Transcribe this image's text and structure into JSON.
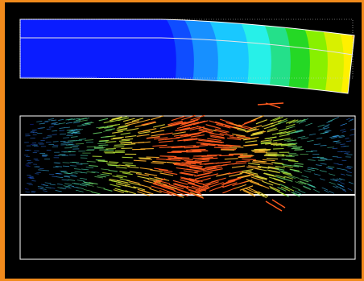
{
  "colors": {
    "frame_border": "#f08a1c",
    "background": "#000000",
    "outline": "#ffffff",
    "contour_scale": [
      "#0a1cff",
      "#0f4dff",
      "#1790ff",
      "#19c8ff",
      "#27f0e8",
      "#24e08a",
      "#25d825",
      "#88f000",
      "#d8f000",
      "#fff000",
      "#ffb000",
      "#ff6a00",
      "#ff1a00"
    ],
    "vector_scale": [
      "#1e3cff",
      "#2f7fff",
      "#3fc4ff",
      "#4fe6c0",
      "#6ee06e",
      "#b8e636",
      "#f0e23a",
      "#ffb02a",
      "#ff5a1e"
    ]
  },
  "panels": [
    {
      "kind": "deformed-beam-contour"
    },
    {
      "kind": "velocity-vector-field"
    }
  ]
}
